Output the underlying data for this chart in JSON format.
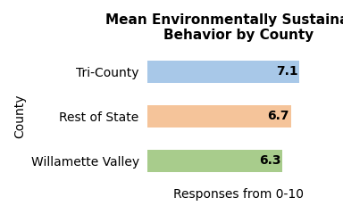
{
  "categories": [
    "Willamette Valley",
    "Rest of State",
    "Tri-County"
  ],
  "values": [
    6.3,
    6.7,
    7.1
  ],
  "bar_colors": [
    "#a8cc8c",
    "#f5c49a",
    "#a8c8e8"
  ],
  "title": "Mean Environmentally Sustainable\nBehavior by County",
  "ylabel": "County",
  "xlabel": "Responses from 0-10",
  "xlim": [
    0,
    8.5
  ],
  "title_fontsize": 11,
  "label_fontsize": 10,
  "value_labels": [
    "6.3",
    "6.7",
    "7.1"
  ]
}
